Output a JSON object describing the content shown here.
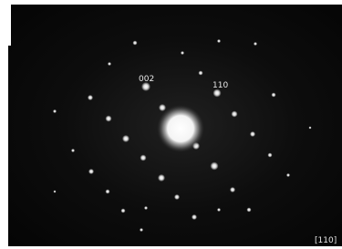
{
  "spot_labels": [
    "002",
    "110"
  ],
  "zone_axis": "[110]"
}
